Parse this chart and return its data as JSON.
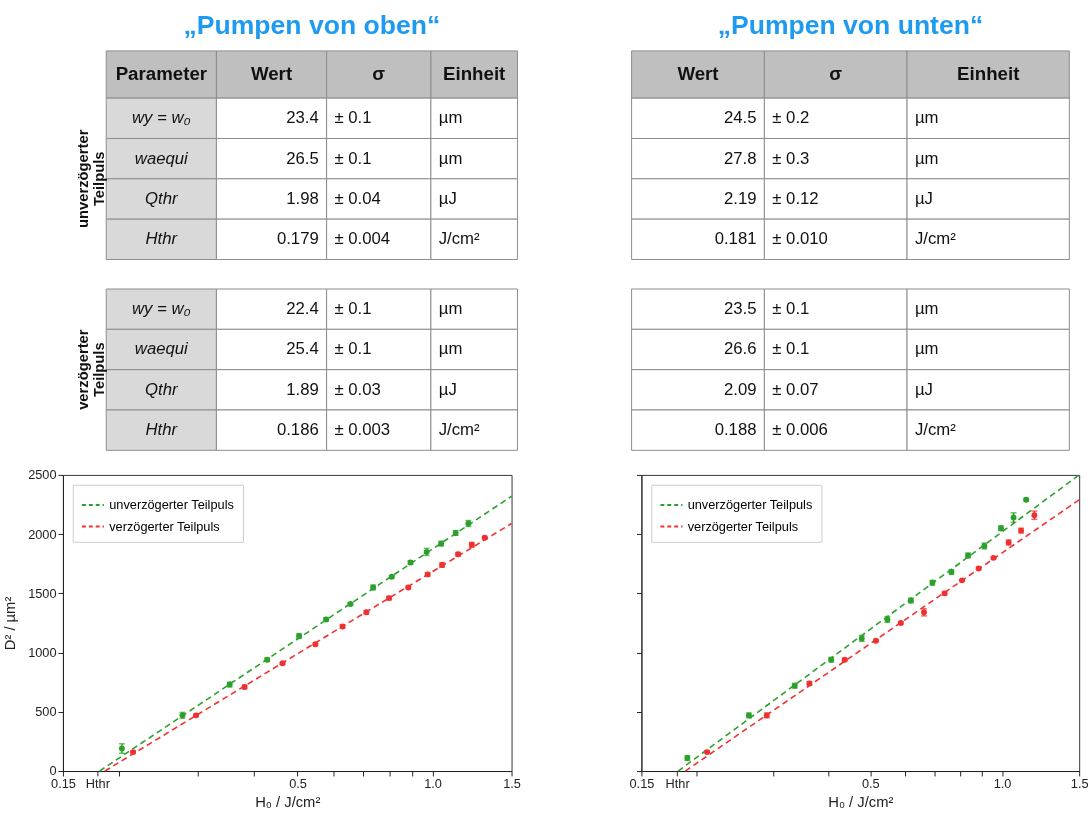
{
  "chart_data": [
    {
      "type": "other",
      "title": "„Pumpen von oben“",
      "categories": [
        "Parameter",
        "Wert",
        "σ",
        "Einheit"
      ],
      "y_categories": [
        "unverzögerter Teilpuls",
        "verzögerter Teilpuls"
      ],
      "cell_labels": [
        [
          [
            "wy = w₀",
            "23.4",
            "± 0.1",
            "µm"
          ],
          [
            "waequi",
            "26.5",
            "± 0.1",
            "µm"
          ],
          [
            "Qthr",
            "1.98",
            "± 0.04",
            "µJ"
          ],
          [
            "Hthr",
            "0.179",
            "± 0.004",
            "J/cm²"
          ]
        ],
        [
          [
            "wy = w₀",
            "22.4",
            "± 0.1",
            "µm"
          ],
          [
            "waequi",
            "25.4",
            "± 0.1",
            "µm"
          ],
          [
            "Qthr",
            "1.89",
            "± 0.03",
            "µJ"
          ],
          [
            "Hthr",
            "0.186",
            "± 0.003",
            "J/cm²"
          ]
        ]
      ]
    },
    {
      "type": "other",
      "title": "„Pumpen von unten“",
      "categories": [
        "Wert",
        "σ",
        "Einheit"
      ],
      "cell_labels": [
        [
          [
            "24.5",
            "± 0.2",
            "µm"
          ],
          [
            "27.8",
            "± 0.3",
            "µm"
          ],
          [
            "2.19",
            "± 0.12",
            "µJ"
          ],
          [
            "0.181",
            "± 0.010",
            "J/cm²"
          ]
        ],
        [
          [
            "23.5",
            "± 0.1",
            "µm"
          ],
          [
            "26.6",
            "± 0.1",
            "µm"
          ],
          [
            "2.09",
            "± 0.07",
            "µJ"
          ],
          [
            "0.188",
            "± 0.006",
            "J/cm²"
          ]
        ]
      ]
    },
    {
      "type": "scatter",
      "xlabel": "H₀ / J/cm²",
      "ylabel": "D² / µm²",
      "log": "x",
      "xlim": [
        0.15,
        1.5
      ],
      "ylim": [
        0,
        2500
      ],
      "xticks": [
        0.15,
        {
          "value": 0.179,
          "label": "Hthr"
        },
        {
          "value": 0.2,
          "label": null
        },
        {
          "value": 0.3,
          "label": null
        },
        {
          "value": 0.4,
          "label": null
        },
        0.5,
        {
          "value": 0.6,
          "label": null
        },
        {
          "value": 0.7,
          "label": null
        },
        {
          "value": 0.8,
          "label": null
        },
        {
          "value": 0.9,
          "label": null
        },
        {
          "value": 1.0,
          "label": "1.0"
        },
        1.5
      ],
      "yticks": [
        0,
        500,
        1000,
        1500,
        2000,
        2500
      ],
      "grid": false,
      "legend": "top left",
      "series": [
        {
          "type": "line",
          "name": "unverzögerter Teilpuls",
          "color": "#2ca02c",
          "line_style": "dashed",
          "x": [
            0.181,
            1.5
          ],
          "values": [
            0,
            2320
          ]
        },
        {
          "type": "line",
          "name": "verzögerter Teilpuls",
          "color": "#f03030",
          "line_style": "dashed",
          "x": [
            0.186,
            1.5
          ],
          "values": [
            0,
            2090
          ]
        },
        {
          "type": "scatter",
          "color": "#2ca02c",
          "marker": "circle",
          "x": [
            0.203,
            0.277,
            0.353,
            0.428,
            0.504,
            0.579,
            0.656,
            0.737,
            0.811,
            0.893,
            0.97,
            1.045,
            1.126,
            1.202
          ],
          "values": [
            190,
            470,
            730,
            940,
            1140,
            1280,
            1410,
            1550,
            1640,
            1760,
            1850,
            1920,
            2010,
            2090
          ],
          "errors": [
            40,
            25,
            20,
            15,
            20,
            15,
            10,
            20,
            10,
            15,
            30,
            20,
            20,
            25
          ]
        },
        {
          "type": "scatter",
          "color": "#f03030",
          "marker": "circle",
          "x": [
            0.215,
            0.297,
            0.381,
            0.463,
            0.548,
            0.63,
            0.712,
            0.8,
            0.883,
            0.975,
            1.05,
            1.14,
            1.223,
            1.307
          ],
          "values": [
            160,
            470,
            710,
            910,
            1070,
            1220,
            1340,
            1460,
            1550,
            1660,
            1740,
            1830,
            1910,
            1970
          ],
          "errors": [
            10,
            10,
            15,
            10,
            10,
            15,
            15,
            15,
            10,
            15,
            20,
            15,
            20,
            10
          ]
        }
      ]
    },
    {
      "type": "scatter",
      "xlabel": "H₀ / J/cm²",
      "log": "x",
      "xlim": [
        0.15,
        1.5
      ],
      "ylim": [
        0,
        2500
      ],
      "tick_labels": "x",
      "xticks": [
        0.15,
        {
          "value": 0.181,
          "label": "Hthr"
        },
        {
          "value": 0.2,
          "label": null
        },
        {
          "value": 0.3,
          "label": null
        },
        {
          "value": 0.4,
          "label": null
        },
        0.5,
        {
          "value": 0.6,
          "label": null
        },
        {
          "value": 0.7,
          "label": null
        },
        {
          "value": 0.8,
          "label": null
        },
        {
          "value": 0.9,
          "label": null
        },
        {
          "value": 1.0,
          "label": "1.0"
        },
        1.5
      ],
      "yticks": [
        {
          "value": 0,
          "label": null
        },
        {
          "value": 500,
          "label": null
        },
        {
          "value": 1000,
          "label": null
        },
        {
          "value": 1500,
          "label": null
        },
        {
          "value": 2000,
          "label": null
        },
        {
          "value": 2500,
          "label": null
        }
      ],
      "grid": false,
      "legend": "top left",
      "series": [
        {
          "type": "line",
          "name": "unverzögerter Teilpuls",
          "color": "#2ca02c",
          "line_style": "dashed",
          "x": [
            0.182,
            1.5
          ],
          "values": [
            0,
            2500
          ]
        },
        {
          "type": "line",
          "name": "verzögerter Teilpuls",
          "color": "#f03030",
          "line_style": "dashed",
          "x": [
            0.189,
            1.5
          ],
          "values": [
            0,
            2290
          ]
        },
        {
          "type": "scatter",
          "color": "#2ca02c",
          "marker": "circle",
          "x": [
            0.191,
            0.264,
            0.336,
            0.407,
            0.478,
            0.547,
            0.619,
            0.693,
            0.766,
            0.836,
            0.911,
            0.994,
            1.062,
            1.135
          ],
          "values": [
            110,
            470,
            720,
            940,
            1120,
            1280,
            1440,
            1590,
            1680,
            1820,
            1900,
            2050,
            2140,
            2290
          ],
          "errors": [
            20,
            20,
            20,
            20,
            25,
            25,
            20,
            20,
            20,
            20,
            25,
            20,
            40,
            10
          ]
        },
        {
          "type": "scatter",
          "color": "#f03030",
          "marker": "circle",
          "x": [
            0.212,
            0.29,
            0.363,
            0.437,
            0.515,
            0.587,
            0.663,
            0.739,
            0.81,
            0.884,
            0.956,
            1.035,
            1.105,
            1.185
          ],
          "values": [
            160,
            470,
            740,
            940,
            1100,
            1250,
            1340,
            1500,
            1610,
            1710,
            1800,
            1930,
            2030,
            2160
          ],
          "errors": [
            10,
            20,
            15,
            10,
            10,
            10,
            30,
            15,
            5,
            10,
            10,
            20,
            20,
            35
          ]
        }
      ]
    }
  ]
}
